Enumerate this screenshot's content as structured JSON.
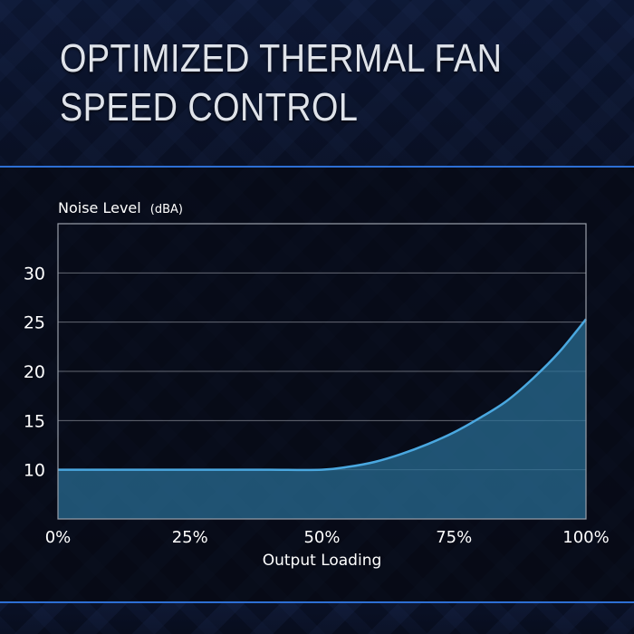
{
  "page": {
    "title": "OPTIMIZED THERMAL FAN SPEED CONTROL"
  },
  "chart_data": {
    "type": "area",
    "title": "",
    "ylabel": "Noise Level",
    "ylabel_unit": "(dBA)",
    "xlabel": "Output Loading",
    "x_ticks": [
      "0%",
      "25%",
      "50%",
      "75%",
      "100%"
    ],
    "x_tick_values": [
      0,
      25,
      50,
      75,
      100
    ],
    "y_ticks": [
      10,
      15,
      20,
      25,
      30
    ],
    "xlim": [
      0,
      100
    ],
    "ylim": [
      5,
      35
    ],
    "grid": true,
    "series": [
      {
        "x": [
          0,
          10,
          20,
          30,
          40,
          50,
          55,
          60,
          65,
          70,
          75,
          80,
          85,
          90,
          95,
          100
        ],
        "y": [
          10,
          10,
          10,
          10,
          10,
          10,
          10.3,
          10.8,
          11.6,
          12.6,
          13.8,
          15.3,
          17.0,
          19.3,
          22.0,
          25.3
        ]
      }
    ],
    "colors": {
      "line": "#4aa8e0",
      "fill": "#2a6f95",
      "grid": "#8a8f99",
      "frame": "#9aa0aa"
    }
  }
}
